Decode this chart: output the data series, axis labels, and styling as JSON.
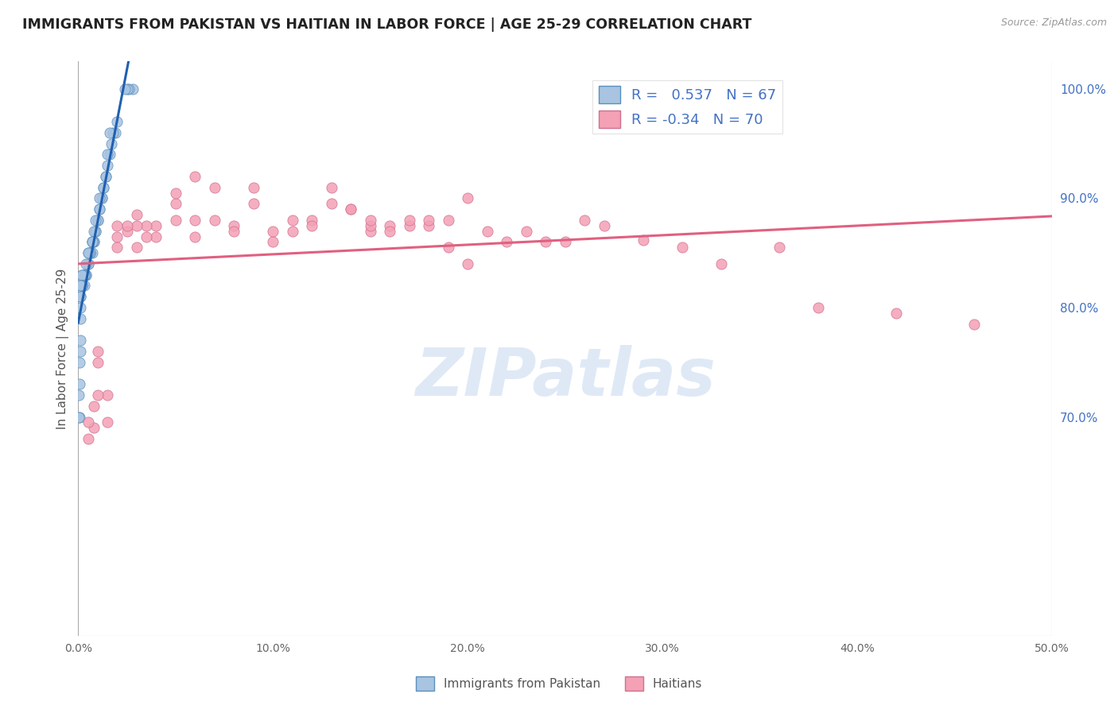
{
  "title": "IMMIGRANTS FROM PAKISTAN VS HAITIAN IN LABOR FORCE | AGE 25-29 CORRELATION CHART",
  "source": "Source: ZipAtlas.com",
  "ylabel": "In Labor Force | Age 25-29",
  "r_pakistan": 0.537,
  "n_pakistan": 67,
  "r_haitian": -0.34,
  "n_haitian": 70,
  "pakistan_color": "#a8c4e0",
  "pakistan_edge_color": "#5a8fc0",
  "haitian_color": "#f4a0b5",
  "haitian_edge_color": "#d07090",
  "pakistan_line_color": "#2060b0",
  "haitian_line_color": "#e06080",
  "legend_label_pakistan": "Immigrants from Pakistan",
  "legend_label_haitian": "Haitians",
  "xlim": [
    0.0,
    0.5
  ],
  "ylim": [
    0.5,
    1.025
  ],
  "right_yticks": [
    1.0,
    0.9,
    0.8,
    0.7
  ],
  "right_ytick_labels": [
    "100.0%",
    "90.0%",
    "80.0%",
    "70.0%"
  ],
  "xtick_labels": [
    "0.0%",
    "10.0%",
    "20.0%",
    "30.0%",
    "40.0%",
    "50.0%"
  ],
  "xtick_positions": [
    0.0,
    0.1,
    0.2,
    0.3,
    0.4,
    0.5
  ],
  "pakistan_x": [
    0.028,
    0.026,
    0.025,
    0.024,
    0.02,
    0.019,
    0.018,
    0.017,
    0.016,
    0.016,
    0.015,
    0.015,
    0.014,
    0.014,
    0.013,
    0.013,
    0.012,
    0.012,
    0.011,
    0.011,
    0.011,
    0.01,
    0.01,
    0.009,
    0.009,
    0.009,
    0.008,
    0.008,
    0.008,
    0.007,
    0.007,
    0.007,
    0.007,
    0.006,
    0.006,
    0.006,
    0.005,
    0.005,
    0.005,
    0.005,
    0.004,
    0.004,
    0.004,
    0.003,
    0.003,
    0.003,
    0.003,
    0.003,
    0.002,
    0.002,
    0.002,
    0.002,
    0.002,
    0.002,
    0.001,
    0.001,
    0.001,
    0.001,
    0.001,
    0.001,
    0.001,
    0.001,
    0.0005,
    0.0005,
    0.0005,
    0.0003,
    0.0003
  ],
  "pakistan_y": [
    1.0,
    1.0,
    1.0,
    1.0,
    0.97,
    0.96,
    0.96,
    0.95,
    0.94,
    0.96,
    0.94,
    0.93,
    0.92,
    0.92,
    0.91,
    0.91,
    0.9,
    0.9,
    0.89,
    0.89,
    0.9,
    0.88,
    0.88,
    0.87,
    0.87,
    0.88,
    0.86,
    0.87,
    0.86,
    0.86,
    0.86,
    0.86,
    0.85,
    0.85,
    0.85,
    0.85,
    0.85,
    0.85,
    0.84,
    0.84,
    0.84,
    0.83,
    0.83,
    0.83,
    0.83,
    0.83,
    0.83,
    0.82,
    0.83,
    0.83,
    0.82,
    0.82,
    0.82,
    0.82,
    0.82,
    0.82,
    0.81,
    0.81,
    0.8,
    0.79,
    0.77,
    0.76,
    0.75,
    0.73,
    0.7,
    0.72,
    0.7
  ],
  "haitian_x": [
    0.46,
    0.42,
    0.38,
    0.36,
    0.33,
    0.31,
    0.29,
    0.27,
    0.26,
    0.25,
    0.24,
    0.23,
    0.22,
    0.21,
    0.2,
    0.2,
    0.19,
    0.19,
    0.18,
    0.18,
    0.17,
    0.17,
    0.16,
    0.16,
    0.15,
    0.15,
    0.15,
    0.14,
    0.14,
    0.13,
    0.13,
    0.12,
    0.12,
    0.11,
    0.11,
    0.1,
    0.1,
    0.09,
    0.09,
    0.08,
    0.08,
    0.07,
    0.07,
    0.06,
    0.06,
    0.06,
    0.05,
    0.05,
    0.05,
    0.04,
    0.04,
    0.035,
    0.035,
    0.03,
    0.03,
    0.03,
    0.025,
    0.025,
    0.02,
    0.02,
    0.02,
    0.015,
    0.015,
    0.01,
    0.01,
    0.01,
    0.008,
    0.008,
    0.005,
    0.005
  ],
  "haitian_y": [
    0.785,
    0.795,
    0.8,
    0.855,
    0.84,
    0.855,
    0.862,
    0.875,
    0.88,
    0.86,
    0.86,
    0.87,
    0.86,
    0.87,
    0.84,
    0.9,
    0.855,
    0.88,
    0.875,
    0.88,
    0.875,
    0.88,
    0.875,
    0.87,
    0.87,
    0.875,
    0.88,
    0.89,
    0.89,
    0.91,
    0.895,
    0.88,
    0.875,
    0.87,
    0.88,
    0.86,
    0.87,
    0.895,
    0.91,
    0.875,
    0.87,
    0.91,
    0.88,
    0.865,
    0.88,
    0.92,
    0.895,
    0.905,
    0.88,
    0.865,
    0.875,
    0.865,
    0.875,
    0.875,
    0.885,
    0.855,
    0.87,
    0.875,
    0.875,
    0.865,
    0.855,
    0.72,
    0.695,
    0.76,
    0.75,
    0.72,
    0.71,
    0.69,
    0.695,
    0.68
  ],
  "watermark_text": "ZIPatlas",
  "watermark_color": "#c0d4ee",
  "title_color": "#222222",
  "axis_label_color": "#555555",
  "tick_color_right": "#4472c4",
  "grid_color": "#cccccc",
  "background_color": "#ffffff"
}
